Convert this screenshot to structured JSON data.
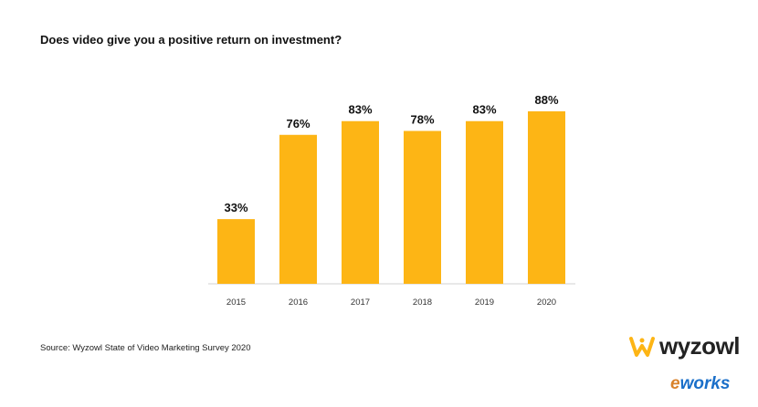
{
  "chart_data": {
    "type": "bar",
    "title": "Does video give you a positive return on investment?",
    "categories": [
      "2015",
      "2016",
      "2017",
      "2018",
      "2019",
      "2020"
    ],
    "values": [
      33,
      76,
      83,
      78,
      83,
      88
    ],
    "value_labels": [
      "33%",
      "76%",
      "83%",
      "78%",
      "83%",
      "88%"
    ],
    "xlabel": "",
    "ylabel": "",
    "ylim": [
      0,
      100
    ],
    "grid": false,
    "bar_color": "#FDB515"
  },
  "source": "Source: Wyzowl State of Video Marketing Survey 2020",
  "logo": {
    "text": "wyzowl",
    "icon": "wyzowl-owl-icon",
    "color": "#FDB515"
  },
  "watermark": {
    "e": "e",
    "text": "works"
  }
}
